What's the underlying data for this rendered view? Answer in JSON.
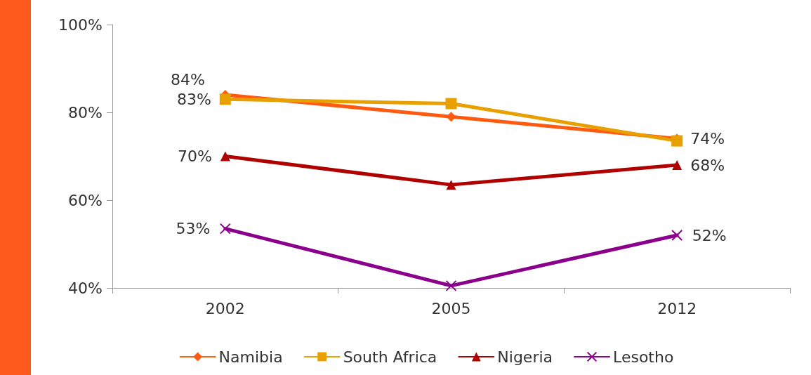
{
  "chart_data": {
    "type": "line",
    "categories": [
      "2002",
      "2005",
      "2012"
    ],
    "series": [
      {
        "name": "Namibia",
        "color": "#ff5a0f",
        "marker": "diamond",
        "values": [
          84,
          79,
          74
        ],
        "value_labels": [
          "84%",
          null,
          "74%"
        ]
      },
      {
        "name": "South Africa",
        "color": "#e8a000",
        "marker": "square",
        "values": [
          83,
          82,
          73.5
        ],
        "value_labels": [
          "83%",
          null,
          null
        ]
      },
      {
        "name": "Nigeria",
        "color": "#b00000",
        "marker": "triangle",
        "values": [
          70,
          63.5,
          68
        ],
        "value_labels": [
          "70%",
          null,
          "68%"
        ]
      },
      {
        "name": "Lesotho",
        "color": "#8b008b",
        "marker": "cross",
        "values": [
          53.5,
          40.5,
          52
        ],
        "value_labels": [
          "53%",
          null,
          "52%"
        ]
      }
    ],
    "ylim": [
      40,
      100
    ],
    "yticks": [
      {
        "value": 40,
        "label": "40%"
      },
      {
        "value": 60,
        "label": "60%"
      },
      {
        "value": 80,
        "label": "80%"
      },
      {
        "value": 100,
        "label": "100%"
      }
    ],
    "grid": false,
    "legend": "bottom",
    "line_style": "solid"
  }
}
